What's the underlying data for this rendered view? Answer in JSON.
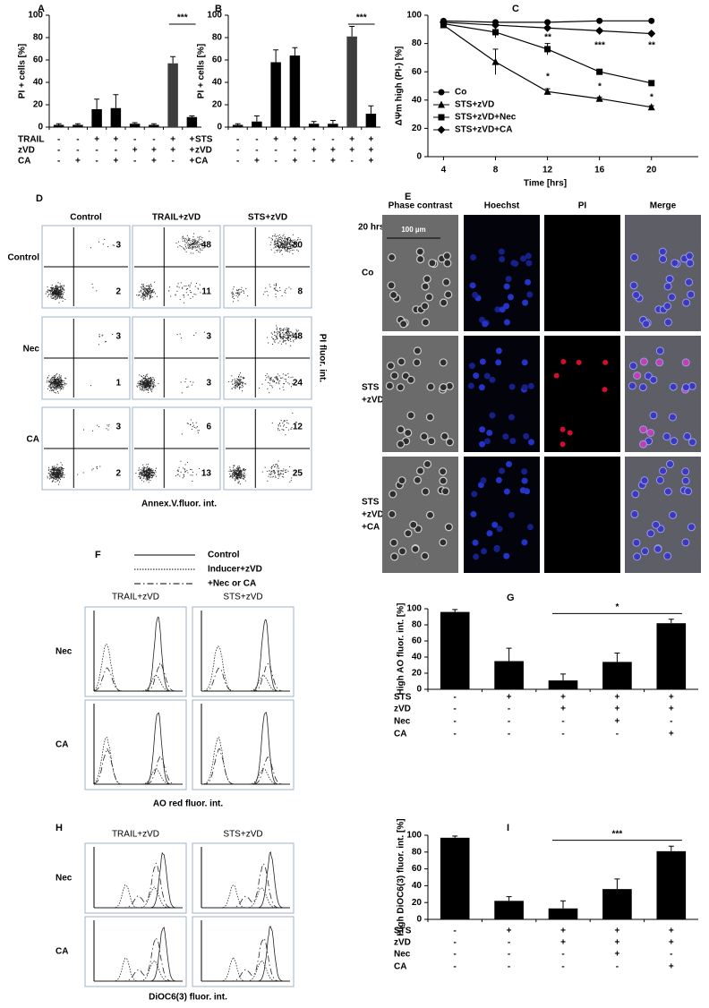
{
  "chart_data": [
    {
      "type": "bar",
      "label": "A",
      "ylabel": "PI + cells [%]",
      "ylim": [
        0,
        100
      ],
      "yticks": [
        0,
        20,
        40,
        60,
        80,
        100
      ],
      "values": [
        2,
        2,
        16,
        17,
        3,
        2,
        57,
        9
      ],
      "errors": [
        1,
        1,
        9,
        12,
        1,
        1,
        6,
        1
      ],
      "colors": [
        "#000000",
        "#000000",
        "#000000",
        "#000000",
        "#000000",
        "#000000",
        "#3c3c3c",
        "#000000"
      ],
      "conditions": [
        {
          "name": "TRAIL",
          "signs": [
            "-",
            "-",
            "+",
            "+",
            "-",
            "-",
            "+",
            "+"
          ]
        },
        {
          "name": "zVD",
          "signs": [
            "-",
            "-",
            "-",
            "-",
            "+",
            "+",
            "+",
            "+"
          ]
        },
        {
          "name": "CA",
          "signs": [
            "-",
            "+",
            "-",
            "+",
            "-",
            "+",
            "-",
            "+"
          ]
        }
      ],
      "annotations": [
        "***"
      ]
    },
    {
      "type": "bar",
      "label": "B",
      "ylabel": "PI + cells [%]",
      "ylim": [
        0,
        100
      ],
      "yticks": [
        0,
        20,
        40,
        60,
        80,
        100
      ],
      "values": [
        2,
        5,
        58,
        64,
        3,
        3,
        81,
        12
      ],
      "errors": [
        1,
        5,
        11,
        7,
        2,
        3,
        9,
        7
      ],
      "colors": [
        "#000000",
        "#000000",
        "#000000",
        "#000000",
        "#000000",
        "#000000",
        "#3c3c3c",
        "#000000"
      ],
      "conditions": [
        {
          "name": "STS",
          "signs": [
            "-",
            "-",
            "+",
            "+",
            "-",
            "-",
            "+",
            "+"
          ]
        },
        {
          "name": "zVD",
          "signs": [
            "-",
            "-",
            "-",
            "-",
            "+",
            "+",
            "+",
            "+"
          ]
        },
        {
          "name": "CA",
          "signs": [
            "-",
            "+",
            "-",
            "+",
            "-",
            "+",
            "-",
            "+"
          ]
        }
      ],
      "annotations": [
        "***"
      ]
    },
    {
      "type": "line",
      "label": "C",
      "ylabel": "ΔΨm high (PI-) [%]",
      "xlabel": "Time [hrs]",
      "x": [
        4,
        8,
        12,
        16,
        20
      ],
      "xlim": [
        2.8,
        23.6
      ],
      "xticks": [
        4,
        8,
        12,
        16,
        20
      ],
      "ylim": [
        0,
        100
      ],
      "yticks": [
        0,
        20,
        40,
        60,
        80,
        100
      ],
      "legend": "lower left",
      "color": "#000000",
      "series": [
        {
          "name": "Co",
          "marker": "circle",
          "values": [
            96,
            95,
            95,
            96,
            96
          ],
          "errors": [
            1,
            1,
            1,
            1,
            1
          ]
        },
        {
          "name": "STS+zVD",
          "marker": "triangle",
          "values": [
            93,
            67,
            46,
            41,
            35
          ],
          "errors": [
            1,
            9,
            2,
            1,
            1
          ]
        },
        {
          "name": "STS+zVD+Nec",
          "marker": "square",
          "values": [
            94,
            88,
            76,
            60,
            52
          ],
          "errors": [
            1,
            4,
            4,
            1,
            1
          ]
        },
        {
          "name": "STS+zVD+CA",
          "marker": "diamond",
          "values": [
            95,
            93,
            91,
            89,
            87
          ],
          "errors": [
            1,
            1,
            1,
            1,
            1
          ]
        }
      ],
      "annotations": [
        "**",
        "*",
        "***",
        "*",
        "**",
        "*"
      ]
    },
    {
      "type": "bar",
      "label": "G",
      "ylabel": "High AO fluor. int. [%]",
      "ylim": [
        0,
        100
      ],
      "yticks": [
        0,
        20,
        40,
        60,
        80,
        100
      ],
      "values": [
        96,
        35,
        11,
        34,
        82
      ],
      "errors": [
        3,
        16,
        8,
        11,
        5
      ],
      "colors": [
        "#000000",
        "#000000",
        "#000000",
        "#000000",
        "#000000"
      ],
      "conditions": [
        {
          "name": "STS",
          "signs": [
            "-",
            "+",
            "+",
            "+",
            "+"
          ]
        },
        {
          "name": "zVD",
          "signs": [
            "-",
            "-",
            "+",
            "+",
            "+"
          ]
        },
        {
          "name": "Nec",
          "signs": [
            "-",
            "-",
            "-",
            "+",
            "-"
          ]
        },
        {
          "name": "CA",
          "signs": [
            "-",
            "-",
            "-",
            "-",
            "+"
          ]
        }
      ],
      "annotations": [
        "*"
      ]
    },
    {
      "type": "bar",
      "label": "I",
      "ylabel": "High DiOC6(3) fluor. int. [%]",
      "ylim": [
        0,
        100
      ],
      "yticks": [
        0,
        20,
        40,
        60,
        80,
        100
      ],
      "values": [
        97,
        22,
        13,
        36,
        81
      ],
      "errors": [
        2,
        5,
        9,
        12,
        6
      ],
      "colors": [
        "#000000",
        "#000000",
        "#000000",
        "#000000",
        "#000000"
      ],
      "conditions": [
        {
          "name": "STS",
          "signs": [
            "-",
            "+",
            "+",
            "+",
            "+"
          ]
        },
        {
          "name": "zVD",
          "signs": [
            "-",
            "-",
            "+",
            "+",
            "+"
          ]
        },
        {
          "name": "Nec",
          "signs": [
            "-",
            "-",
            "-",
            "+",
            "-"
          ]
        },
        {
          "name": "CA",
          "signs": [
            "-",
            "-",
            "-",
            "-",
            "+"
          ]
        }
      ],
      "annotations": [
        "***"
      ]
    }
  ],
  "panel_D": {
    "label": "D",
    "columns": [
      "Control",
      "TRAIL+zVD",
      "STS+zVD"
    ],
    "rows": [
      "Control",
      "Nec",
      "CA"
    ],
    "values": [
      [
        [
          3,
          2
        ],
        [
          48,
          11
        ],
        [
          80,
          8
        ]
      ],
      [
        [
          3,
          1
        ],
        [
          3,
          3
        ],
        [
          48,
          24
        ]
      ],
      [
        [
          3,
          2
        ],
        [
          6,
          13
        ],
        [
          12,
          25
        ]
      ]
    ],
    "ylabel": "PI fluor. int.",
    "xlabel": "Annex.V.fluor. int."
  },
  "panel_E": {
    "label": "E",
    "columns": [
      "Phase contrast",
      "Hoechst",
      "PI",
      "Merge"
    ],
    "time": "20 hrs",
    "rows": [
      [
        "Co"
      ],
      [
        "STS",
        "+zVD"
      ],
      [
        "STS",
        "+zVD",
        "+CA"
      ]
    ],
    "scale_bar": "100 µm"
  },
  "panel_F": {
    "label": "F",
    "legend": [
      "Control",
      "Inducer+zVD",
      "+Nec or CA"
    ],
    "columns": [
      "TRAIL+zVD",
      "STS+zVD"
    ],
    "rows": [
      "Nec",
      "CA"
    ],
    "xlabel": "AO red fluor. int."
  },
  "panel_H": {
    "label": "H",
    "columns": [
      "TRAIL+zVD",
      "STS+zVD"
    ],
    "rows": [
      "Nec",
      "CA"
    ],
    "xlabel": "DiOC6(3) fluor. int."
  }
}
